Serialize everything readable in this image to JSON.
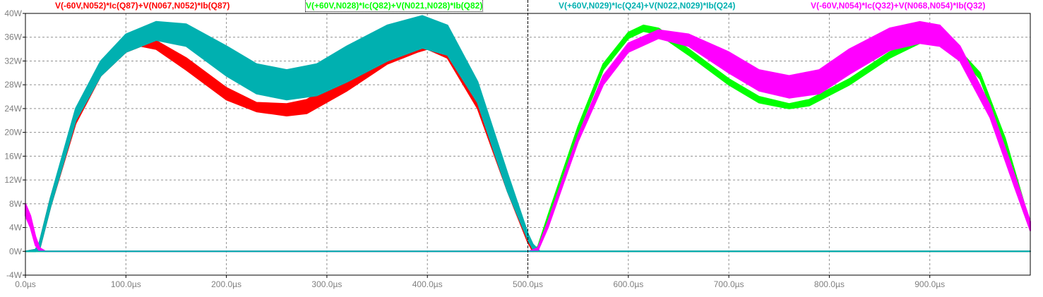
{
  "chart_data": {
    "type": "line",
    "xlabel": "",
    "ylabel": "",
    "xlim": [
      0,
      1000
    ],
    "ylim": [
      -4,
      40
    ],
    "grid": true,
    "cursor_x": 500,
    "x_ticks": [
      {
        "v": 0,
        "label": "0.0µs"
      },
      {
        "v": 100,
        "label": "100.0µs"
      },
      {
        "v": 200,
        "label": "200.0µs"
      },
      {
        "v": 300,
        "label": "300.0µs"
      },
      {
        "v": 400,
        "label": "400.0µs"
      },
      {
        "v": 500,
        "label": "500.0µs"
      },
      {
        "v": 600,
        "label": "600.0µs"
      },
      {
        "v": 700,
        "label": "700.0µs"
      },
      {
        "v": 800,
        "label": "800.0µs"
      },
      {
        "v": 900,
        "label": "900.0µs"
      }
    ],
    "y_ticks": [
      {
        "v": 40,
        "label": "40W"
      },
      {
        "v": 36,
        "label": "36W"
      },
      {
        "v": 32,
        "label": "32W"
      },
      {
        "v": 28,
        "label": "28W"
      },
      {
        "v": 24,
        "label": "24W"
      },
      {
        "v": 20,
        "label": "20W"
      },
      {
        "v": 16,
        "label": "16W"
      },
      {
        "v": 12,
        "label": "12W"
      },
      {
        "v": 8,
        "label": "8W"
      },
      {
        "v": 4,
        "label": "4W"
      },
      {
        "v": 0,
        "label": "0W"
      },
      {
        "v": -4,
        "label": "-4W"
      }
    ],
    "series": [
      {
        "name": "V(-60V,N052)*Ic(Q87)+V(N067,N052)*Ib(Q87)",
        "color": "#ff0000",
        "x": [
          0,
          10,
          14,
          25,
          50,
          75,
          100,
          115,
          130,
          160,
          200,
          230,
          260,
          280,
          320,
          360,
          390,
          400,
          420,
          450,
          480,
          500,
          505,
          510,
          520,
          1000
        ],
        "upper": [
          0,
          0.3,
          1.5,
          9,
          23,
          31,
          35,
          35.8,
          35.4,
          32.5,
          27.5,
          25,
          24.8,
          25.5,
          29.5,
          34,
          35.8,
          36,
          34.5,
          26,
          12,
          2.5,
          0.3,
          0,
          0,
          0
        ],
        "lower": [
          0,
          0,
          0.3,
          7.5,
          21.5,
          29.5,
          33.5,
          34.5,
          34,
          30.5,
          25.5,
          23.5,
          22.8,
          23.2,
          27,
          31.5,
          33.5,
          34,
          32.5,
          24,
          10,
          1.5,
          0,
          0,
          0,
          0
        ]
      },
      {
        "name": "V(+60V,N028)*Ic(Q82)+V(N021,N028)*Ib(Q82)",
        "color": "#00ff00",
        "x": [
          0,
          500,
          505,
          510,
          520,
          550,
          575,
          600,
          615,
          630,
          660,
          700,
          730,
          760,
          780,
          820,
          860,
          890,
          900,
          920,
          950,
          975,
          1000
        ],
        "upper": [
          0,
          0,
          0.2,
          0.8,
          6,
          21,
          31.5,
          36.8,
          38,
          37.5,
          34,
          29,
          26,
          24.8,
          25.5,
          29,
          33.5,
          35.8,
          36.2,
          35.5,
          30,
          19,
          4.5
        ],
        "lower": [
          0,
          0,
          0,
          0.2,
          5,
          20,
          30.5,
          35.8,
          37,
          36.5,
          33,
          28,
          25,
          24,
          24.5,
          28,
          32.5,
          35,
          35.5,
          34.5,
          29,
          18,
          3.5
        ]
      },
      {
        "name": "V(+60V,N029)*Ic(Q24)+V(N022,N029)*Ib(Q24)",
        "color": "#00b0b0",
        "x": [
          0,
          10,
          14,
          25,
          50,
          75,
          100,
          130,
          160,
          200,
          230,
          260,
          290,
          320,
          360,
          395,
          420,
          450,
          480,
          500,
          505,
          512,
          520,
          1000
        ],
        "upper": [
          0,
          0.3,
          1.5,
          9,
          24,
          32,
          36.5,
          38.6,
          38.2,
          34.5,
          31.5,
          30.5,
          31.5,
          34.5,
          38,
          39.6,
          38,
          28.5,
          13,
          3,
          1.2,
          0,
          0,
          0
        ],
        "lower": [
          0,
          0,
          0.3,
          7.5,
          22,
          29.5,
          33.5,
          35.5,
          34.5,
          29.5,
          26.5,
          25.5,
          26.2,
          28.5,
          32,
          34.2,
          33,
          25,
          10,
          2,
          0.4,
          0,
          0,
          0
        ]
      },
      {
        "name": "V(-60V,N054)*Ic(Q32)+V(N068,N054)*Ib(Q32)",
        "color": "#ff00ff",
        "x": [
          0,
          5,
          10,
          14,
          20,
          500,
          505,
          510,
          520,
          550,
          575,
          600,
          630,
          660,
          700,
          730,
          760,
          790,
          820,
          860,
          890,
          910,
          930,
          960,
          985,
          1000
        ],
        "upper": [
          8,
          6,
          2.5,
          0.6,
          0,
          0,
          0.2,
          0.6,
          5,
          19.5,
          29.5,
          35,
          37.2,
          36.5,
          33.5,
          30.5,
          29.5,
          30.5,
          34,
          37.5,
          38.6,
          38,
          34.5,
          24.5,
          12.5,
          5
        ],
        "lower": [
          6,
          4,
          1,
          0.1,
          0,
          0,
          0,
          0.1,
          4,
          18.5,
          28,
          33.5,
          35.8,
          34.5,
          30,
          27,
          25.8,
          26.5,
          29.8,
          33.8,
          35,
          34.5,
          32,
          22.5,
          10.5,
          3.5
        ]
      }
    ]
  },
  "legend": [
    {
      "label": "V(-60V,N052)*Ic(Q87)+V(N067,N052)*Ib(Q87)",
      "color": "#ff0000"
    },
    {
      "label": "V(+60V,N028)*Ic(Q82)+V(N021,N028)*Ib(Q82)",
      "color": "#00ff00"
    },
    {
      "label": "V(+60V,N029)*Ic(Q24)+V(N022,N029)*Ib(Q24)",
      "color": "#00b0b0"
    },
    {
      "label": "V(-60V,N054)*Ic(Q32)+V(N068,N054)*Ib(Q32)",
      "color": "#ff00ff"
    }
  ]
}
